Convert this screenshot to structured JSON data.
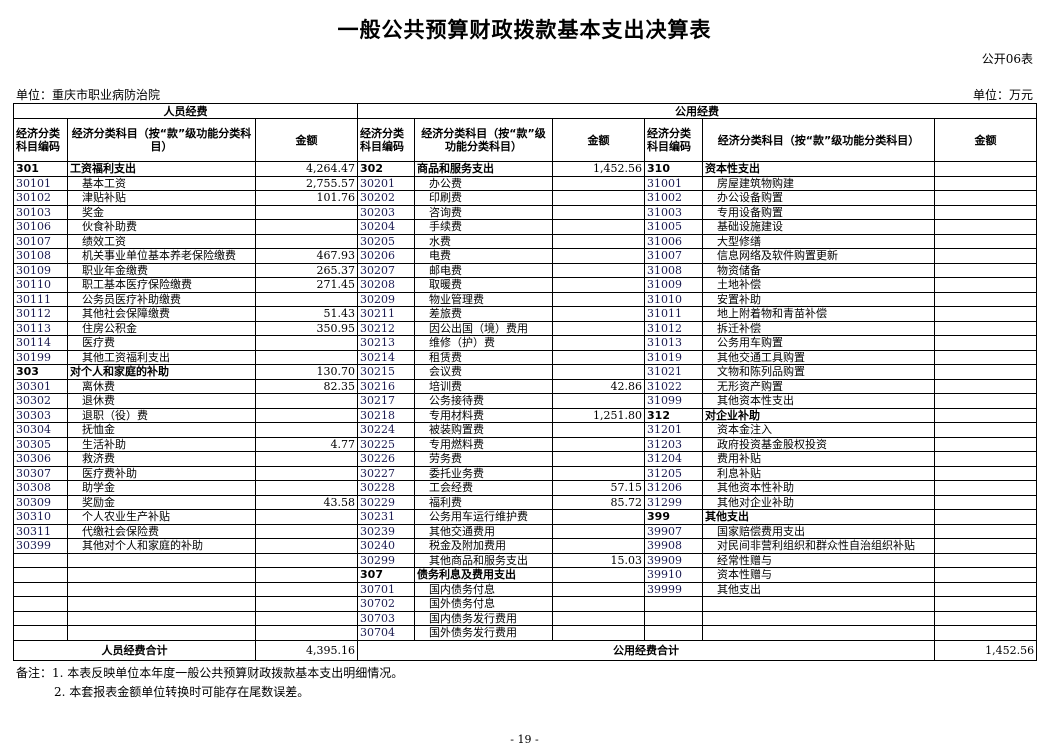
{
  "title": "一般公共预算财政拨款基本支出决算表",
  "form_no": "公开06表",
  "unit_left": "单位：重庆市职业病防治院",
  "unit_right": "单位：万元",
  "sections": {
    "personnel": "人员经费",
    "public": "公用经费"
  },
  "headers": {
    "code": "经济分类科目编码",
    "name_left": "经济分类科目（按“款”级功能分类科目）",
    "name_mid": "经济分类科目（按“款”级功能分类科目）",
    "name_right": "经济分类科目（按“款”级功能分类科目）",
    "amount": "金额"
  },
  "left": [
    {
      "code": "301",
      "name": "工资福利支出",
      "amount": "4,264.47",
      "bold": true
    },
    {
      "code": "30101",
      "name": "基本工资",
      "amount": "2,755.57"
    },
    {
      "code": "30102",
      "name": "津贴补贴",
      "amount": "101.76"
    },
    {
      "code": "30103",
      "name": "奖金",
      "amount": ""
    },
    {
      "code": "30106",
      "name": "伙食补助费",
      "amount": ""
    },
    {
      "code": "30107",
      "name": "绩效工资",
      "amount": ""
    },
    {
      "code": "30108",
      "name": "机关事业单位基本养老保险缴费",
      "amount": "467.93"
    },
    {
      "code": "30109",
      "name": "职业年金缴费",
      "amount": "265.37"
    },
    {
      "code": "30110",
      "name": "职工基本医疗保险缴费",
      "amount": "271.45"
    },
    {
      "code": "30111",
      "name": "公务员医疗补助缴费",
      "amount": ""
    },
    {
      "code": "30112",
      "name": "其他社会保障缴费",
      "amount": "51.43"
    },
    {
      "code": "30113",
      "name": "住房公积金",
      "amount": "350.95"
    },
    {
      "code": "30114",
      "name": "医疗费",
      "amount": ""
    },
    {
      "code": "30199",
      "name": "其他工资福利支出",
      "amount": ""
    },
    {
      "code": "303",
      "name": "对个人和家庭的补助",
      "amount": "130.70",
      "bold": true
    },
    {
      "code": "30301",
      "name": "离休费",
      "amount": "82.35"
    },
    {
      "code": "30302",
      "name": "退休费",
      "amount": ""
    },
    {
      "code": "30303",
      "name": "退职（役）费",
      "amount": ""
    },
    {
      "code": "30304",
      "name": "抚恤金",
      "amount": ""
    },
    {
      "code": "30305",
      "name": "生活补助",
      "amount": "4.77"
    },
    {
      "code": "30306",
      "name": "救济费",
      "amount": ""
    },
    {
      "code": "30307",
      "name": "医疗费补助",
      "amount": ""
    },
    {
      "code": "30308",
      "name": "助学金",
      "amount": ""
    },
    {
      "code": "30309",
      "name": "奖励金",
      "amount": "43.58"
    },
    {
      "code": "30310",
      "name": "个人农业生产补贴",
      "amount": ""
    },
    {
      "code": "30311",
      "name": "代缴社会保险费",
      "amount": ""
    },
    {
      "code": "30399",
      "name": "其他对个人和家庭的补助",
      "amount": ""
    },
    {
      "code": "",
      "name": "",
      "amount": ""
    },
    {
      "code": "",
      "name": "",
      "amount": ""
    },
    {
      "code": "",
      "name": "",
      "amount": ""
    },
    {
      "code": "",
      "name": "",
      "amount": ""
    },
    {
      "code": "",
      "name": "",
      "amount": ""
    },
    {
      "code": "",
      "name": "",
      "amount": ""
    }
  ],
  "middle": [
    {
      "code": "302",
      "name": "商品和服务支出",
      "amount": "1,452.56",
      "bold": true
    },
    {
      "code": "30201",
      "name": "办公费",
      "amount": ""
    },
    {
      "code": "30202",
      "name": "印刷费",
      "amount": ""
    },
    {
      "code": "30203",
      "name": "咨询费",
      "amount": ""
    },
    {
      "code": "30204",
      "name": "手续费",
      "amount": ""
    },
    {
      "code": "30205",
      "name": "水费",
      "amount": ""
    },
    {
      "code": "30206",
      "name": "电费",
      "amount": ""
    },
    {
      "code": "30207",
      "name": "邮电费",
      "amount": ""
    },
    {
      "code": "30208",
      "name": "取暖费",
      "amount": ""
    },
    {
      "code": "30209",
      "name": "物业管理费",
      "amount": ""
    },
    {
      "code": "30211",
      "name": "差旅费",
      "amount": ""
    },
    {
      "code": "30212",
      "name": "因公出国（境）费用",
      "amount": ""
    },
    {
      "code": "30213",
      "name": "维修（护）费",
      "amount": ""
    },
    {
      "code": "30214",
      "name": "租赁费",
      "amount": ""
    },
    {
      "code": "30215",
      "name": "会议费",
      "amount": ""
    },
    {
      "code": "30216",
      "name": "培训费",
      "amount": "42.86"
    },
    {
      "code": "30217",
      "name": "公务接待费",
      "amount": ""
    },
    {
      "code": "30218",
      "name": "专用材料费",
      "amount": "1,251.80"
    },
    {
      "code": "30224",
      "name": "被装购置费",
      "amount": ""
    },
    {
      "code": "30225",
      "name": "专用燃料费",
      "amount": ""
    },
    {
      "code": "30226",
      "name": "劳务费",
      "amount": ""
    },
    {
      "code": "30227",
      "name": "委托业务费",
      "amount": ""
    },
    {
      "code": "30228",
      "name": "工会经费",
      "amount": "57.15"
    },
    {
      "code": "30229",
      "name": "福利费",
      "amount": "85.72"
    },
    {
      "code": "30231",
      "name": "公务用车运行维护费",
      "amount": ""
    },
    {
      "code": "30239",
      "name": "其他交通费用",
      "amount": ""
    },
    {
      "code": "30240",
      "name": "税金及附加费用",
      "amount": ""
    },
    {
      "code": "30299",
      "name": "其他商品和服务支出",
      "amount": "15.03"
    },
    {
      "code": "307",
      "name": "债务利息及费用支出",
      "amount": "",
      "bold": true
    },
    {
      "code": "30701",
      "name": "国内债务付息",
      "amount": ""
    },
    {
      "code": "30702",
      "name": "国外债务付息",
      "amount": ""
    },
    {
      "code": "30703",
      "name": "国内债务发行费用",
      "amount": ""
    },
    {
      "code": "30704",
      "name": "国外债务发行费用",
      "amount": ""
    }
  ],
  "right": [
    {
      "code": "310",
      "name": "资本性支出",
      "amount": "",
      "bold": true
    },
    {
      "code": "31001",
      "name": "房屋建筑物购建",
      "amount": ""
    },
    {
      "code": "31002",
      "name": "办公设备购置",
      "amount": ""
    },
    {
      "code": "31003",
      "name": "专用设备购置",
      "amount": ""
    },
    {
      "code": "31005",
      "name": "基础设施建设",
      "amount": ""
    },
    {
      "code": "31006",
      "name": "大型修缮",
      "amount": ""
    },
    {
      "code": "31007",
      "name": "信息网络及软件购置更新",
      "amount": ""
    },
    {
      "code": "31008",
      "name": "物资储备",
      "amount": ""
    },
    {
      "code": "31009",
      "name": "土地补偿",
      "amount": ""
    },
    {
      "code": "31010",
      "name": "安置补助",
      "amount": ""
    },
    {
      "code": "31011",
      "name": "地上附着物和青苗补偿",
      "amount": ""
    },
    {
      "code": "31012",
      "name": "拆迁补偿",
      "amount": ""
    },
    {
      "code": "31013",
      "name": "公务用车购置",
      "amount": ""
    },
    {
      "code": "31019",
      "name": "其他交通工具购置",
      "amount": ""
    },
    {
      "code": "31021",
      "name": "文物和陈列品购置",
      "amount": ""
    },
    {
      "code": "31022",
      "name": "无形资产购置",
      "amount": ""
    },
    {
      "code": "31099",
      "name": "其他资本性支出",
      "amount": ""
    },
    {
      "code": "312",
      "name": "对企业补助",
      "amount": "",
      "bold": true
    },
    {
      "code": "31201",
      "name": "资本金注入",
      "amount": ""
    },
    {
      "code": "31203",
      "name": "政府投资基金股权投资",
      "amount": ""
    },
    {
      "code": "31204",
      "name": "费用补贴",
      "amount": ""
    },
    {
      "code": "31205",
      "name": "利息补贴",
      "amount": ""
    },
    {
      "code": "31206",
      "name": "其他资本性补助",
      "amount": ""
    },
    {
      "code": "31299",
      "name": "其他对企业补助",
      "amount": ""
    },
    {
      "code": "399",
      "name": "其他支出",
      "amount": "",
      "bold": true
    },
    {
      "code": "39907",
      "name": "国家赔偿费用支出",
      "amount": ""
    },
    {
      "code": "39908",
      "name": "对民间非营利组织和群众性自治组织补贴",
      "amount": ""
    },
    {
      "code": "39909",
      "name": "经常性赠与",
      "amount": ""
    },
    {
      "code": "39910",
      "name": "资本性赠与",
      "amount": ""
    },
    {
      "code": "39999",
      "name": "其他支出",
      "amount": ""
    },
    {
      "code": "",
      "name": "",
      "amount": ""
    },
    {
      "code": "",
      "name": "",
      "amount": ""
    },
    {
      "code": "",
      "name": "",
      "amount": ""
    }
  ],
  "totals": {
    "personnel_label": "人员经费合计",
    "personnel_amount": "4,395.16",
    "public_label": "公用经费合计",
    "public_amount": "1,452.56"
  },
  "notes": [
    "备注：1. 本表反映单位本年度一般公共预算财政拨款基本支出明细情况。",
    "2. 本套报表金额单位转换时可能存在尾数误差。"
  ],
  "page_number": "- 19 -"
}
